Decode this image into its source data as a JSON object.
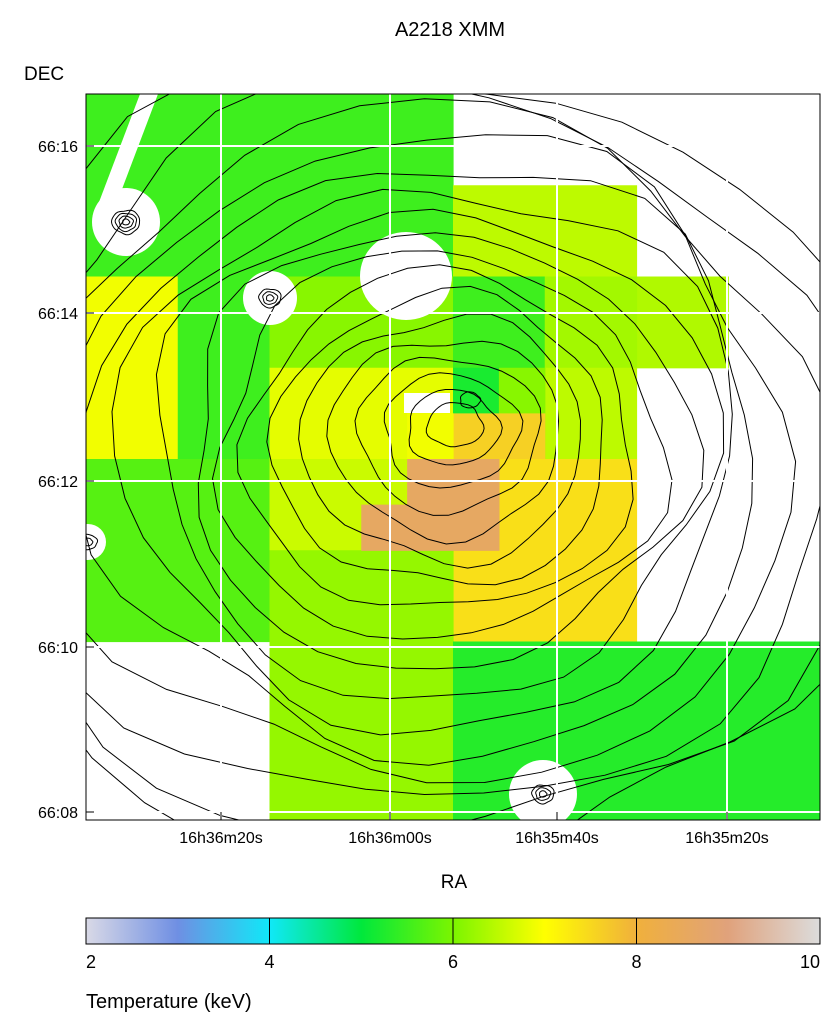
{
  "chart_data": {
    "type": "heatmap",
    "title": "A2218 XMM",
    "xlabel": "RA",
    "ylabel": "DEC",
    "x_ticks": [
      "16h36m20s",
      "16h36m00s",
      "16h35m40s",
      "16h35m20s"
    ],
    "y_ticks": [
      "66:16",
      "66:14",
      "66:12",
      "66:10",
      "66:08"
    ],
    "grid": true,
    "colorbar": {
      "label": "Temperature (keV)",
      "min": 2,
      "max": 10,
      "ticks": [
        2,
        4,
        6,
        8,
        10
      ],
      "placement": "bottom",
      "stops": [
        {
          "value": 2,
          "color": "#d9d9e6"
        },
        {
          "value": 3,
          "color": "#6f8fe3"
        },
        {
          "value": 4,
          "color": "#10e8f8"
        },
        {
          "value": 5,
          "color": "#00e83c"
        },
        {
          "value": 6,
          "color": "#7bf500"
        },
        {
          "value": 7,
          "color": "#ffff00"
        },
        {
          "value": 8,
          "color": "#f0b03c"
        },
        {
          "value": 9,
          "color": "#e0a27c"
        },
        {
          "value": 10,
          "color": "#dcdcdc"
        }
      ]
    },
    "temperature_map": [
      {
        "col": 0,
        "row": 0,
        "w": 4,
        "h": 2,
        "kev": 5.5
      },
      {
        "col": 4,
        "row": 1,
        "w": 2,
        "h": 1,
        "kev": 6.5
      },
      {
        "col": 6,
        "row": 2,
        "w": 1,
        "h": 1,
        "kev": 6.4
      },
      {
        "col": 0,
        "row": 2,
        "w": 1,
        "h": 2,
        "kev": 6.9
      },
      {
        "col": 1,
        "row": 2,
        "w": 1,
        "h": 2,
        "kev": 5.5
      },
      {
        "col": 2,
        "row": 2,
        "w": 2,
        "h": 1,
        "kev": 6.1
      },
      {
        "col": 2,
        "row": 3,
        "w": 2,
        "h": 1,
        "kev": 6.8
      },
      {
        "col": 4,
        "row": 2,
        "w": 1,
        "h": 1,
        "kev": 5.5
      },
      {
        "col": 5,
        "row": 2,
        "w": 1,
        "h": 1,
        "kev": 6.3
      },
      {
        "col": 5,
        "row": 3,
        "w": 1,
        "h": 1,
        "kev": 6.5
      },
      {
        "col": 4,
        "row": 3,
        "w": 0.5,
        "h": 1,
        "kev": 5.2
      },
      {
        "col": 4.5,
        "row": 3,
        "w": 0.5,
        "h": 1,
        "kev": 6.1
      },
      {
        "col": 4,
        "row": 3.5,
        "w": 1,
        "h": 0.5,
        "kev": 7.6
      },
      {
        "col": 3.5,
        "row": 3.5,
        "w": 0.5,
        "h": 0.5,
        "kev": 6.9
      },
      {
        "col": 0,
        "row": 4,
        "w": 2,
        "h": 2,
        "kev": 5.7
      },
      {
        "col": 2,
        "row": 4,
        "w": 2,
        "h": 1,
        "kev": 6.6
      },
      {
        "col": 4,
        "row": 4,
        "w": 2,
        "h": 2,
        "kev": 7.4
      },
      {
        "col": 2,
        "row": 5,
        "w": 2,
        "h": 1,
        "kev": 6.2
      },
      {
        "col": 3.5,
        "row": 4,
        "w": 1,
        "h": 1,
        "kev": 8.6
      },
      {
        "col": 3,
        "row": 4.5,
        "w": 0.5,
        "h": 0.5,
        "kev": 8.6
      },
      {
        "col": 2,
        "row": 6,
        "w": 2,
        "h": 2,
        "kev": 6.2
      },
      {
        "col": 4,
        "row": 6,
        "w": 4,
        "h": 2,
        "kev": 5.3
      }
    ]
  }
}
